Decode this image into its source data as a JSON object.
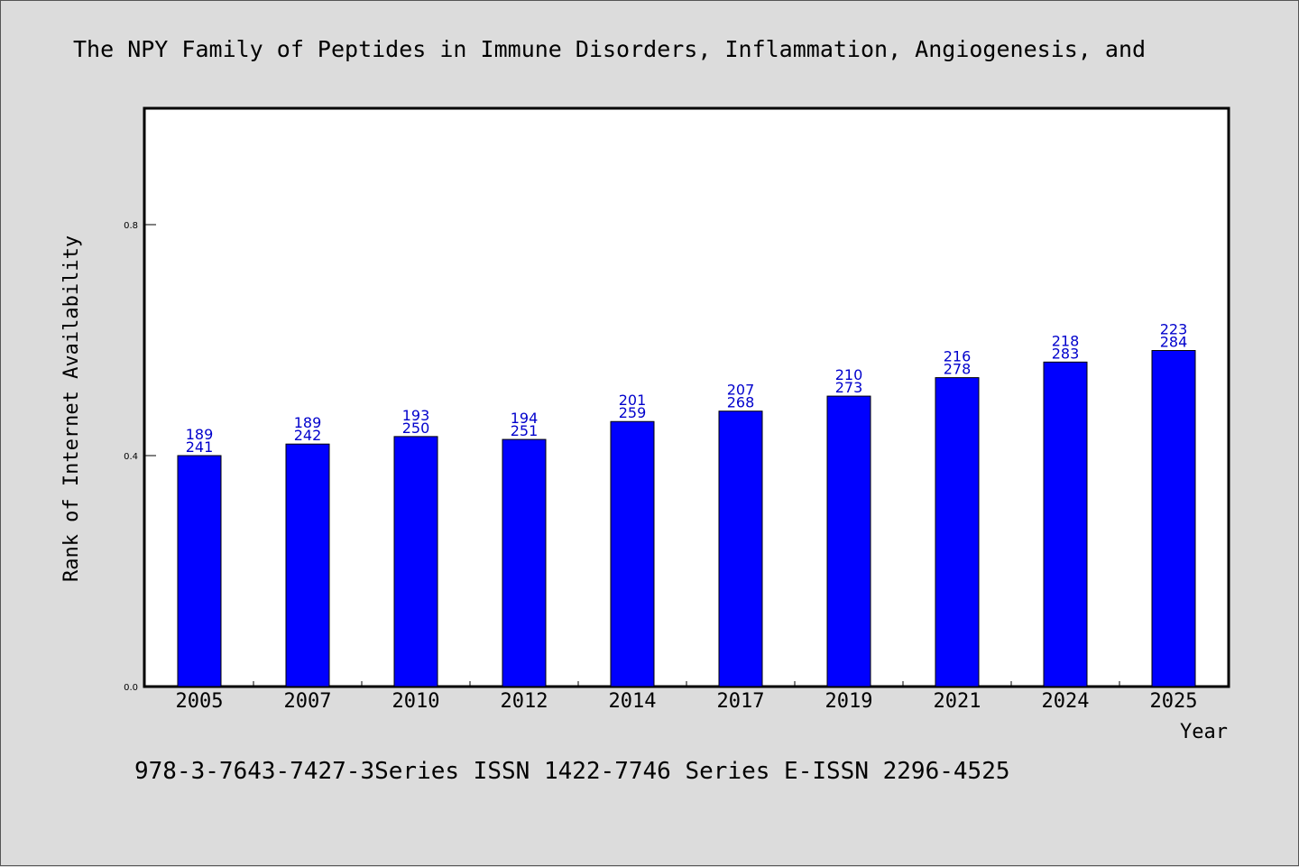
{
  "chart_data": {
    "type": "bar",
    "title": "The NPY Family of Peptides in Immune Disorders, Inflammation, Angiogenesis, and",
    "xlabel": "Year",
    "ylabel": "Rank of Internet Availability",
    "categories": [
      "2005",
      "2007",
      "2010",
      "2012",
      "2014",
      "2017",
      "2019",
      "2021",
      "2024",
      "2025"
    ],
    "values": [
      0.4,
      0.42,
      0.433,
      0.428,
      0.459,
      0.477,
      0.503,
      0.535,
      0.562,
      0.582
    ],
    "label_top": [
      "189",
      "189",
      "193",
      "194",
      "201",
      "207",
      "210",
      "216",
      "218",
      "223"
    ],
    "label_bottom": [
      "241",
      "242",
      "250",
      "251",
      "259",
      "268",
      "273",
      "278",
      "283",
      "284"
    ],
    "ylim": [
      0,
      1.0
    ],
    "yticks": [
      0.0,
      0.4,
      0.8
    ],
    "ytick_labels": [
      "0.0",
      "0.4",
      "0.8"
    ],
    "grid": false,
    "bar_color": "#0000ff",
    "label_color": "#0000cc"
  },
  "footer": "978-3-7643-7427-3Series ISSN 1422-7746 Series E-ISSN 2296-4525"
}
